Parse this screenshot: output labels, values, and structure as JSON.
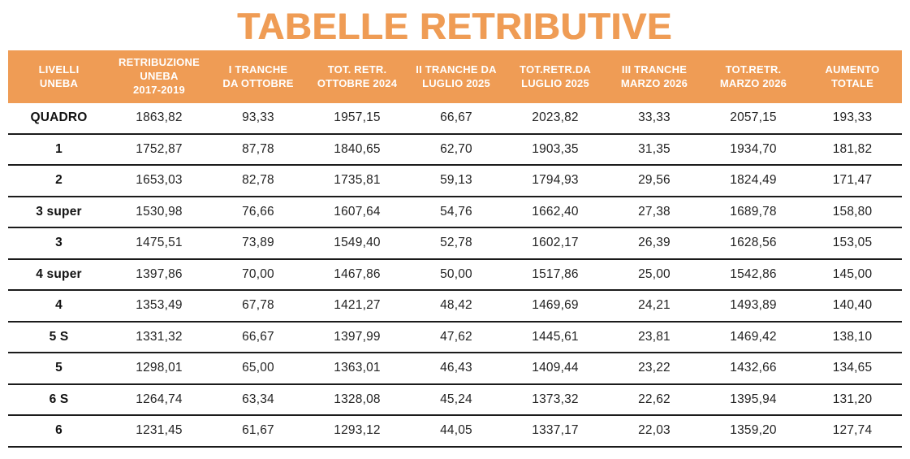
{
  "title": "TABELLE RETRIBUTIVE",
  "colors": {
    "accent_orange": "#EF9C55",
    "header_text": "#FFFFFF",
    "body_text": "#232323",
    "row_line": "#1B1B1B"
  },
  "table": {
    "columns": [
      {
        "label": "LIVELLI\nUNEBA"
      },
      {
        "label": "RETRIBUZIONE\nUNEBA\n2017-2019"
      },
      {
        "label": "I TRANCHE\nDA OTTOBRE"
      },
      {
        "label": "TOT. RETR.\nOTTOBRE 2024"
      },
      {
        "label": "II TRANCHE DA\nLUGLIO 2025"
      },
      {
        "label": "TOT.RETR.DA\nLUGLIO 2025"
      },
      {
        "label": "III TRANCHE\nMARZO 2026"
      },
      {
        "label": "TOT.RETR.\nMARZO 2026"
      },
      {
        "label": "AUMENTO\nTOTALE"
      }
    ],
    "rows": [
      {
        "level": "QUADRO",
        "values": [
          "1863,82",
          "93,33",
          "1957,15",
          "66,67",
          "2023,82",
          "33,33",
          "2057,15",
          "193,33"
        ]
      },
      {
        "level": "1",
        "values": [
          "1752,87",
          "87,78",
          "1840,65",
          "62,70",
          "1903,35",
          "31,35",
          "1934,70",
          "181,82"
        ]
      },
      {
        "level": "2",
        "values": [
          "1653,03",
          "82,78",
          "1735,81",
          "59,13",
          "1794,93",
          "29,56",
          "1824,49",
          "171,47"
        ]
      },
      {
        "level": "3 super",
        "values": [
          "1530,98",
          "76,66",
          "1607,64",
          "54,76",
          "1662,40",
          "27,38",
          "1689,78",
          "158,80"
        ]
      },
      {
        "level": "3",
        "values": [
          "1475,51",
          "73,89",
          "1549,40",
          "52,78",
          "1602,17",
          "26,39",
          "1628,56",
          "153,05"
        ]
      },
      {
        "level": "4 super",
        "values": [
          "1397,86",
          "70,00",
          "1467,86",
          "50,00",
          "1517,86",
          "25,00",
          "1542,86",
          "145,00"
        ]
      },
      {
        "level": "4",
        "values": [
          "1353,49",
          "67,78",
          "1421,27",
          "48,42",
          "1469,69",
          "24,21",
          "1493,89",
          "140,40"
        ]
      },
      {
        "level": "5 S",
        "values": [
          "1331,32",
          "66,67",
          "1397,99",
          "47,62",
          "1445,61",
          "23,81",
          "1469,42",
          "138,10"
        ]
      },
      {
        "level": "5",
        "values": [
          "1298,01",
          "65,00",
          "1363,01",
          "46,43",
          "1409,44",
          "23,22",
          "1432,66",
          "134,65"
        ]
      },
      {
        "level": "6 S",
        "values": [
          "1264,74",
          "63,34",
          "1328,08",
          "45,24",
          "1373,32",
          "22,62",
          "1395,94",
          "131,20"
        ]
      },
      {
        "level": "6",
        "values": [
          "1231,45",
          "61,67",
          "1293,12",
          "44,05",
          "1337,17",
          "22,03",
          "1359,20",
          "127,74"
        ]
      }
    ]
  }
}
